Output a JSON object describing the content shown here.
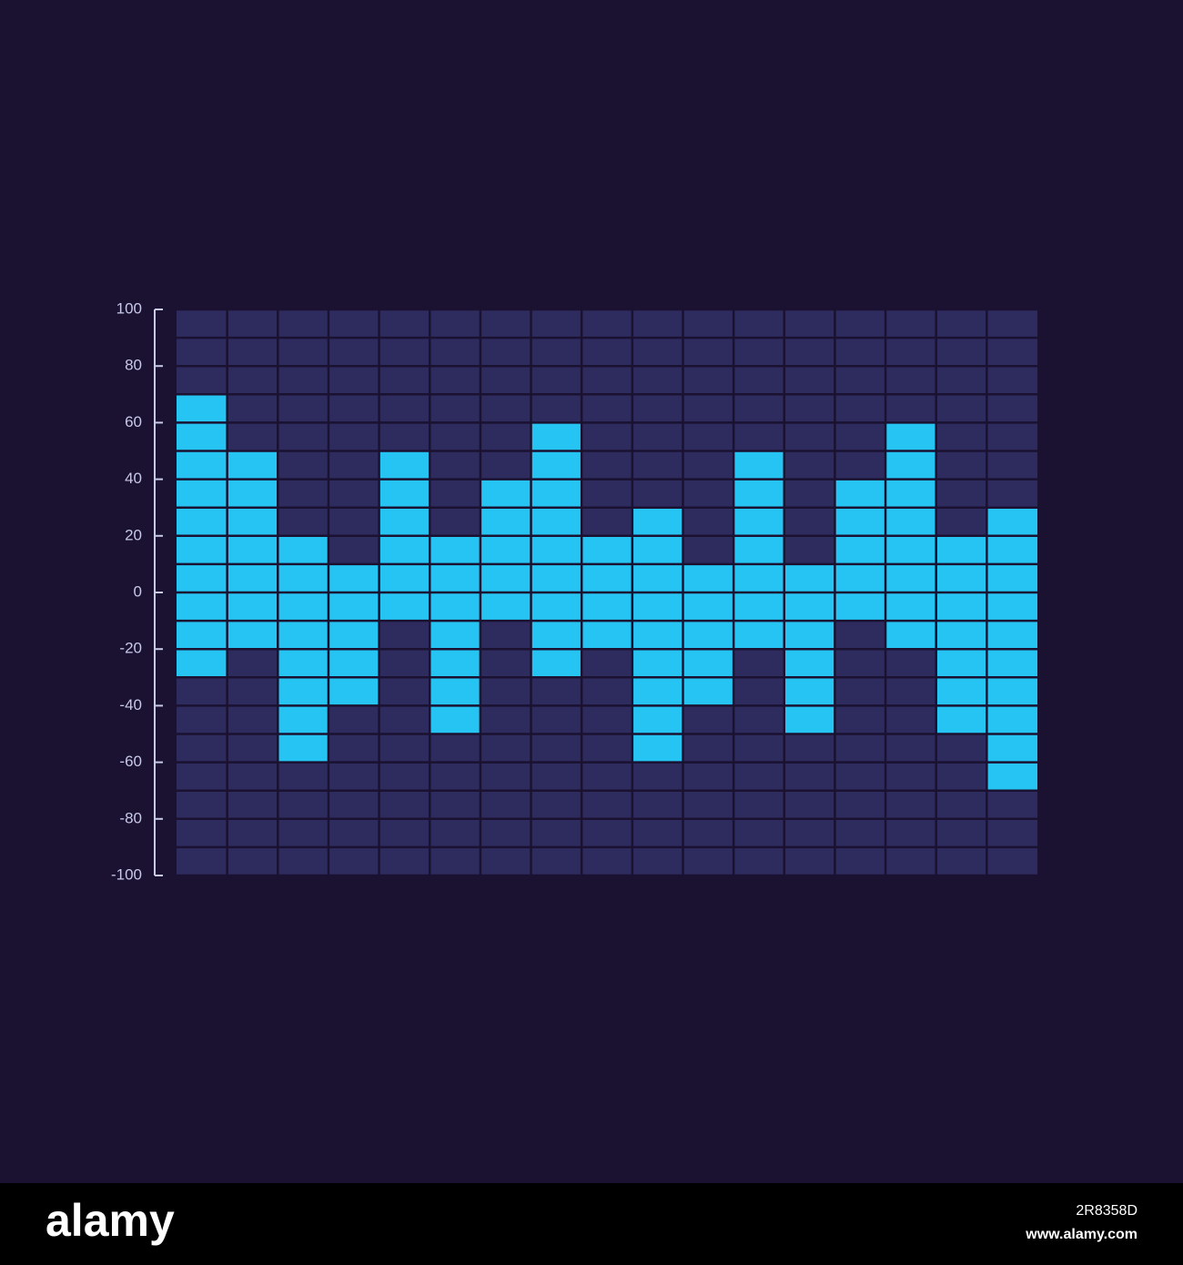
{
  "chart_data": {
    "type": "floating_bar",
    "high": [
      70,
      50,
      20,
      10,
      50,
      20,
      40,
      60,
      20,
      30,
      10,
      50,
      10,
      40,
      60,
      20,
      30
    ],
    "low": [
      -30,
      -20,
      -60,
      -40,
      -10,
      -50,
      -10,
      -30,
      -20,
      -60,
      -40,
      -20,
      -50,
      -10,
      -20,
      -50,
      -70
    ],
    "color": "#26c4f2",
    "cell_color": "#2e2b5f",
    "grid_step": 10,
    "ylim": [
      -100,
      100
    ],
    "yticks": [
      -100,
      -80,
      -60,
      -40,
      -20,
      0,
      20,
      40,
      60,
      80,
      100
    ]
  },
  "footer": {
    "logo": "alamy",
    "image_id": "2R8358D",
    "site": "www.alamy.com"
  }
}
